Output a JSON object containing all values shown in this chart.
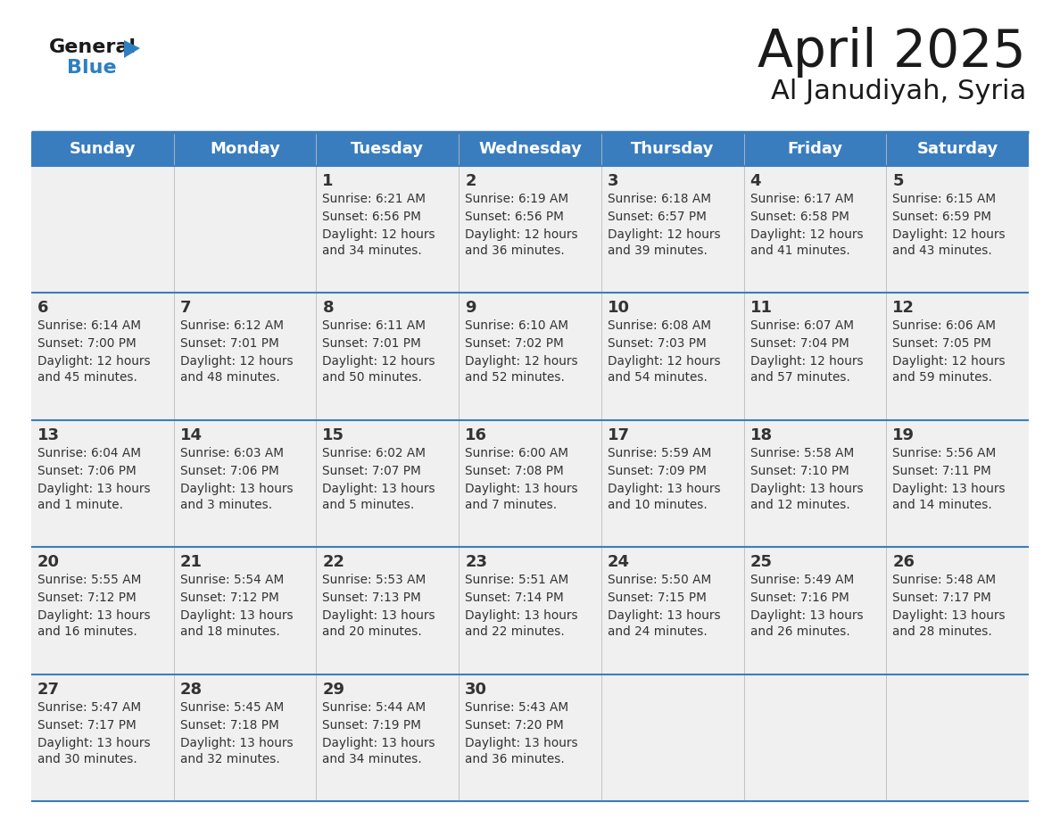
{
  "title": "April 2025",
  "subtitle": "Al Janudiyah, Syria",
  "header_bg": "#3a7dbf",
  "header_text_color": "#ffffff",
  "cell_bg": "#f0f0f0",
  "text_color": "#333333",
  "line_color": "#3a7dbf",
  "logo_dark": "#1a1a1a",
  "logo_blue": "#2e7fc2",
  "days_of_week": [
    "Sunday",
    "Monday",
    "Tuesday",
    "Wednesday",
    "Thursday",
    "Friday",
    "Saturday"
  ],
  "weeks": [
    [
      {
        "day": "",
        "sunrise": "",
        "sunset": "",
        "daylight": ""
      },
      {
        "day": "",
        "sunrise": "",
        "sunset": "",
        "daylight": ""
      },
      {
        "day": "1",
        "sunrise": "Sunrise: 6:21 AM",
        "sunset": "Sunset: 6:56 PM",
        "daylight": "Daylight: 12 hours\nand 34 minutes."
      },
      {
        "day": "2",
        "sunrise": "Sunrise: 6:19 AM",
        "sunset": "Sunset: 6:56 PM",
        "daylight": "Daylight: 12 hours\nand 36 minutes."
      },
      {
        "day": "3",
        "sunrise": "Sunrise: 6:18 AM",
        "sunset": "Sunset: 6:57 PM",
        "daylight": "Daylight: 12 hours\nand 39 minutes."
      },
      {
        "day": "4",
        "sunrise": "Sunrise: 6:17 AM",
        "sunset": "Sunset: 6:58 PM",
        "daylight": "Daylight: 12 hours\nand 41 minutes."
      },
      {
        "day": "5",
        "sunrise": "Sunrise: 6:15 AM",
        "sunset": "Sunset: 6:59 PM",
        "daylight": "Daylight: 12 hours\nand 43 minutes."
      }
    ],
    [
      {
        "day": "6",
        "sunrise": "Sunrise: 6:14 AM",
        "sunset": "Sunset: 7:00 PM",
        "daylight": "Daylight: 12 hours\nand 45 minutes."
      },
      {
        "day": "7",
        "sunrise": "Sunrise: 6:12 AM",
        "sunset": "Sunset: 7:01 PM",
        "daylight": "Daylight: 12 hours\nand 48 minutes."
      },
      {
        "day": "8",
        "sunrise": "Sunrise: 6:11 AM",
        "sunset": "Sunset: 7:01 PM",
        "daylight": "Daylight: 12 hours\nand 50 minutes."
      },
      {
        "day": "9",
        "sunrise": "Sunrise: 6:10 AM",
        "sunset": "Sunset: 7:02 PM",
        "daylight": "Daylight: 12 hours\nand 52 minutes."
      },
      {
        "day": "10",
        "sunrise": "Sunrise: 6:08 AM",
        "sunset": "Sunset: 7:03 PM",
        "daylight": "Daylight: 12 hours\nand 54 minutes."
      },
      {
        "day": "11",
        "sunrise": "Sunrise: 6:07 AM",
        "sunset": "Sunset: 7:04 PM",
        "daylight": "Daylight: 12 hours\nand 57 minutes."
      },
      {
        "day": "12",
        "sunrise": "Sunrise: 6:06 AM",
        "sunset": "Sunset: 7:05 PM",
        "daylight": "Daylight: 12 hours\nand 59 minutes."
      }
    ],
    [
      {
        "day": "13",
        "sunrise": "Sunrise: 6:04 AM",
        "sunset": "Sunset: 7:06 PM",
        "daylight": "Daylight: 13 hours\nand 1 minute."
      },
      {
        "day": "14",
        "sunrise": "Sunrise: 6:03 AM",
        "sunset": "Sunset: 7:06 PM",
        "daylight": "Daylight: 13 hours\nand 3 minutes."
      },
      {
        "day": "15",
        "sunrise": "Sunrise: 6:02 AM",
        "sunset": "Sunset: 7:07 PM",
        "daylight": "Daylight: 13 hours\nand 5 minutes."
      },
      {
        "day": "16",
        "sunrise": "Sunrise: 6:00 AM",
        "sunset": "Sunset: 7:08 PM",
        "daylight": "Daylight: 13 hours\nand 7 minutes."
      },
      {
        "day": "17",
        "sunrise": "Sunrise: 5:59 AM",
        "sunset": "Sunset: 7:09 PM",
        "daylight": "Daylight: 13 hours\nand 10 minutes."
      },
      {
        "day": "18",
        "sunrise": "Sunrise: 5:58 AM",
        "sunset": "Sunset: 7:10 PM",
        "daylight": "Daylight: 13 hours\nand 12 minutes."
      },
      {
        "day": "19",
        "sunrise": "Sunrise: 5:56 AM",
        "sunset": "Sunset: 7:11 PM",
        "daylight": "Daylight: 13 hours\nand 14 minutes."
      }
    ],
    [
      {
        "day": "20",
        "sunrise": "Sunrise: 5:55 AM",
        "sunset": "Sunset: 7:12 PM",
        "daylight": "Daylight: 13 hours\nand 16 minutes."
      },
      {
        "day": "21",
        "sunrise": "Sunrise: 5:54 AM",
        "sunset": "Sunset: 7:12 PM",
        "daylight": "Daylight: 13 hours\nand 18 minutes."
      },
      {
        "day": "22",
        "sunrise": "Sunrise: 5:53 AM",
        "sunset": "Sunset: 7:13 PM",
        "daylight": "Daylight: 13 hours\nand 20 minutes."
      },
      {
        "day": "23",
        "sunrise": "Sunrise: 5:51 AM",
        "sunset": "Sunset: 7:14 PM",
        "daylight": "Daylight: 13 hours\nand 22 minutes."
      },
      {
        "day": "24",
        "sunrise": "Sunrise: 5:50 AM",
        "sunset": "Sunset: 7:15 PM",
        "daylight": "Daylight: 13 hours\nand 24 minutes."
      },
      {
        "day": "25",
        "sunrise": "Sunrise: 5:49 AM",
        "sunset": "Sunset: 7:16 PM",
        "daylight": "Daylight: 13 hours\nand 26 minutes."
      },
      {
        "day": "26",
        "sunrise": "Sunrise: 5:48 AM",
        "sunset": "Sunset: 7:17 PM",
        "daylight": "Daylight: 13 hours\nand 28 minutes."
      }
    ],
    [
      {
        "day": "27",
        "sunrise": "Sunrise: 5:47 AM",
        "sunset": "Sunset: 7:17 PM",
        "daylight": "Daylight: 13 hours\nand 30 minutes."
      },
      {
        "day": "28",
        "sunrise": "Sunrise: 5:45 AM",
        "sunset": "Sunset: 7:18 PM",
        "daylight": "Daylight: 13 hours\nand 32 minutes."
      },
      {
        "day": "29",
        "sunrise": "Sunrise: 5:44 AM",
        "sunset": "Sunset: 7:19 PM",
        "daylight": "Daylight: 13 hours\nand 34 minutes."
      },
      {
        "day": "30",
        "sunrise": "Sunrise: 5:43 AM",
        "sunset": "Sunset: 7:20 PM",
        "daylight": "Daylight: 13 hours\nand 36 minutes."
      },
      {
        "day": "",
        "sunrise": "",
        "sunset": "",
        "daylight": ""
      },
      {
        "day": "",
        "sunrise": "",
        "sunset": "",
        "daylight": ""
      },
      {
        "day": "",
        "sunrise": "",
        "sunset": "",
        "daylight": ""
      }
    ]
  ]
}
